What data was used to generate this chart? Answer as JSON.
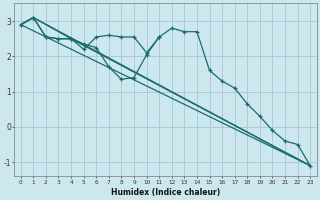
{
  "xlabel": "Humidex (Indice chaleur)",
  "background_color": "#cce8ee",
  "grid_color": "#aaccd4",
  "line_color": "#1a6b6b",
  "xlim": [
    -0.5,
    23.5
  ],
  "ylim": [
    -1.4,
    3.5
  ],
  "ytick_values": [
    -1,
    0,
    1,
    2,
    3
  ],
  "line1_x": [
    0,
    1,
    2,
    3,
    4,
    5,
    6,
    7,
    8,
    9,
    10,
    11,
    12,
    13,
    14,
    15,
    16,
    17,
    18,
    19,
    20,
    21,
    22,
    23
  ],
  "line1_y": [
    2.9,
    3.1,
    2.55,
    2.5,
    2.5,
    2.2,
    2.55,
    2.6,
    2.55,
    2.55,
    2.1,
    2.55,
    2.8,
    2.7,
    2.7,
    1.6,
    1.3,
    1.1,
    0.65,
    0.3,
    -0.1,
    -0.4,
    -0.5,
    -1.1
  ],
  "line2_x": [
    0,
    1,
    2,
    3,
    4,
    5,
    6,
    7,
    8,
    9,
    10,
    11
  ],
  "line2_y": [
    2.9,
    3.1,
    2.55,
    2.5,
    2.5,
    2.35,
    2.25,
    1.7,
    1.35,
    1.4,
    2.05,
    2.55
  ],
  "line3_x": [
    0,
    23
  ],
  "line3_y": [
    2.9,
    -1.1
  ],
  "line4_x": [
    0,
    1,
    23
  ],
  "line4_y": [
    2.9,
    3.1,
    -1.1
  ],
  "line5_x": [
    0,
    1,
    4,
    23
  ],
  "line5_y": [
    2.9,
    3.1,
    2.5,
    -1.1
  ]
}
